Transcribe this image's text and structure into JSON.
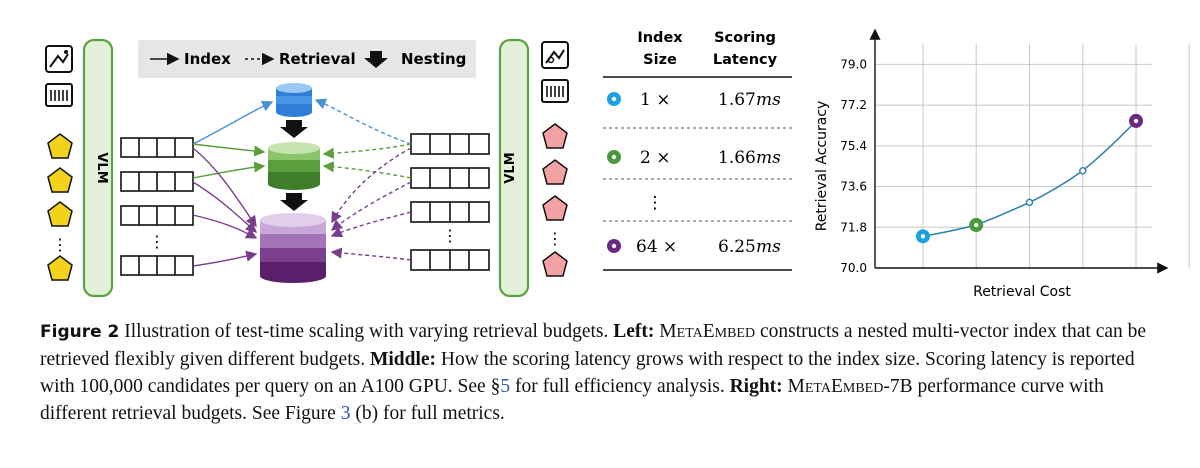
{
  "legend": {
    "index": "Index",
    "retrieval": "Retrieval",
    "nesting": "Nesting"
  },
  "left": {
    "encoder_left": "VLM",
    "encoder_right": "VLM",
    "ellipsis": "⋮"
  },
  "table": {
    "header_index_line1": "Index",
    "header_index_line2": "Size",
    "header_latency_line1": "Scoring",
    "header_latency_line2": "Latency",
    "rows": [
      {
        "marker_color": "#1aa3e0",
        "size": "1 ×",
        "latency": "1.67",
        "unit": "ms"
      },
      {
        "marker_color": "#4a9a3d",
        "size": "2 ×",
        "latency": "1.66",
        "unit": "ms"
      },
      {
        "marker_color": "#6b2a80",
        "size": "64 ×",
        "latency": "6.25",
        "unit": "ms"
      }
    ],
    "ellipsis": "⋮"
  },
  "chart_data": {
    "type": "line",
    "xlabel": "Retrieval Cost",
    "ylabel": "Retrieval Accuracy",
    "ylim": [
      70.0,
      79.9
    ],
    "yticks": [
      "70.0",
      "71.8",
      "73.6",
      "75.4",
      "77.2",
      "79.0"
    ],
    "x": [
      1,
      2,
      3,
      4,
      5
    ],
    "values": [
      71.4,
      71.9,
      72.9,
      74.3,
      76.5
    ],
    "highlight_colors": [
      "#1aa3e0",
      "#4a9a3d",
      null,
      null,
      "#6b2a80"
    ],
    "line_color": "#2b7fb0",
    "grid": true
  },
  "caption": {
    "label": "Figure 2",
    "s1": "Illustration of test-time scaling with varying retrieval budgets.",
    "left_label": "Left:",
    "metaembed": "MetaEmbed",
    "s2": "constructs a nested multi-vector index that can be retrieved flexibly given different budgets.",
    "middle_label": "Middle:",
    "s3": "How the scoring latency grows with respect to the index size. Scoring latency is reported with 100,000 candidates per query on an A100 GPU. See §",
    "sec_ref": "5",
    "s4": "for full efficiency analysis.",
    "right_label": "Right:",
    "metaembed7b": "MetaEmbed-7B",
    "s5": "performance curve with different retrieval budgets. See Figure",
    "fig_ref": "3",
    "s6": "(b) for full metrics."
  }
}
